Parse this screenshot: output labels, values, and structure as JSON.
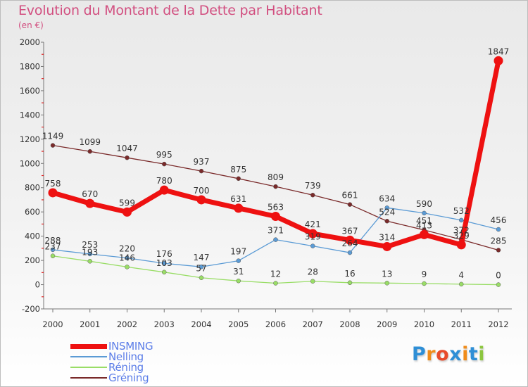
{
  "title": "Evolution du Montant de la Dette par Habitant",
  "unit_label": "(en €)",
  "logo": {
    "text": "Proxiti",
    "colors": [
      "#2f8fd6",
      "#f08c1a",
      "#e84b2b",
      "#2f8fd6",
      "#f08c1a",
      "#2f8fd6",
      "#8cc63f"
    ]
  },
  "chart_data": {
    "type": "line",
    "categories": [
      "2000",
      "2001",
      "2002",
      "2003",
      "2004",
      "2005",
      "2006",
      "2007",
      "2008",
      "2009",
      "2010",
      "2011",
      "2012"
    ],
    "ylim": [
      -200,
      2000
    ],
    "yticks": [
      -200,
      0,
      200,
      400,
      600,
      800,
      1000,
      1200,
      1400,
      1600,
      1800,
      2000
    ],
    "xlabel": "",
    "ylabel": "",
    "grid": false,
    "legend_position": "bottom-left",
    "series": [
      {
        "name": "INSMING",
        "color": "#ee1111",
        "width": 7,
        "marker": 6.5,
        "values": [
          758,
          670,
          599,
          780,
          700,
          631,
          563,
          421,
          367,
          314,
          413,
          329,
          1847
        ],
        "labels": [
          "758",
          "670",
          "599",
          "780",
          "700",
          "631",
          "563",
          "421",
          "367",
          "314",
          "413",
          "329",
          "1847"
        ]
      },
      {
        "name": "Nelling",
        "color": "#5b9bd5",
        "width": 1.3,
        "marker": 3,
        "values": [
          288,
          253,
          220,
          176,
          147,
          197,
          371,
          319,
          264,
          634,
          590,
          532,
          456
        ],
        "labels": [
          "288",
          "253",
          "220",
          "176",
          "147",
          "197",
          "371",
          "319",
          "264",
          "634",
          "590",
          "532",
          "456"
        ]
      },
      {
        "name": "Réning",
        "color": "#99dd66",
        "width": 1.3,
        "marker": 3,
        "values": [
          237,
          193,
          146,
          103,
          57,
          31,
          12,
          28,
          16,
          13,
          9,
          4,
          0
        ],
        "labels": [
          "237",
          "193",
          "146",
          "103",
          "57",
          "31",
          "12",
          "28",
          "16",
          "13",
          "9",
          "4",
          "0"
        ]
      },
      {
        "name": "Gréning",
        "color": "#7a2a2a",
        "width": 1.3,
        "marker": 3,
        "values": [
          1149,
          1099,
          1047,
          995,
          937,
          875,
          809,
          739,
          661,
          524,
          451,
          372,
          285
        ],
        "labels": [
          "1149",
          "1099",
          "1047",
          "995",
          "937",
          "875",
          "809",
          "739",
          "661",
          "524",
          "451",
          "372",
          "285"
        ]
      }
    ]
  }
}
